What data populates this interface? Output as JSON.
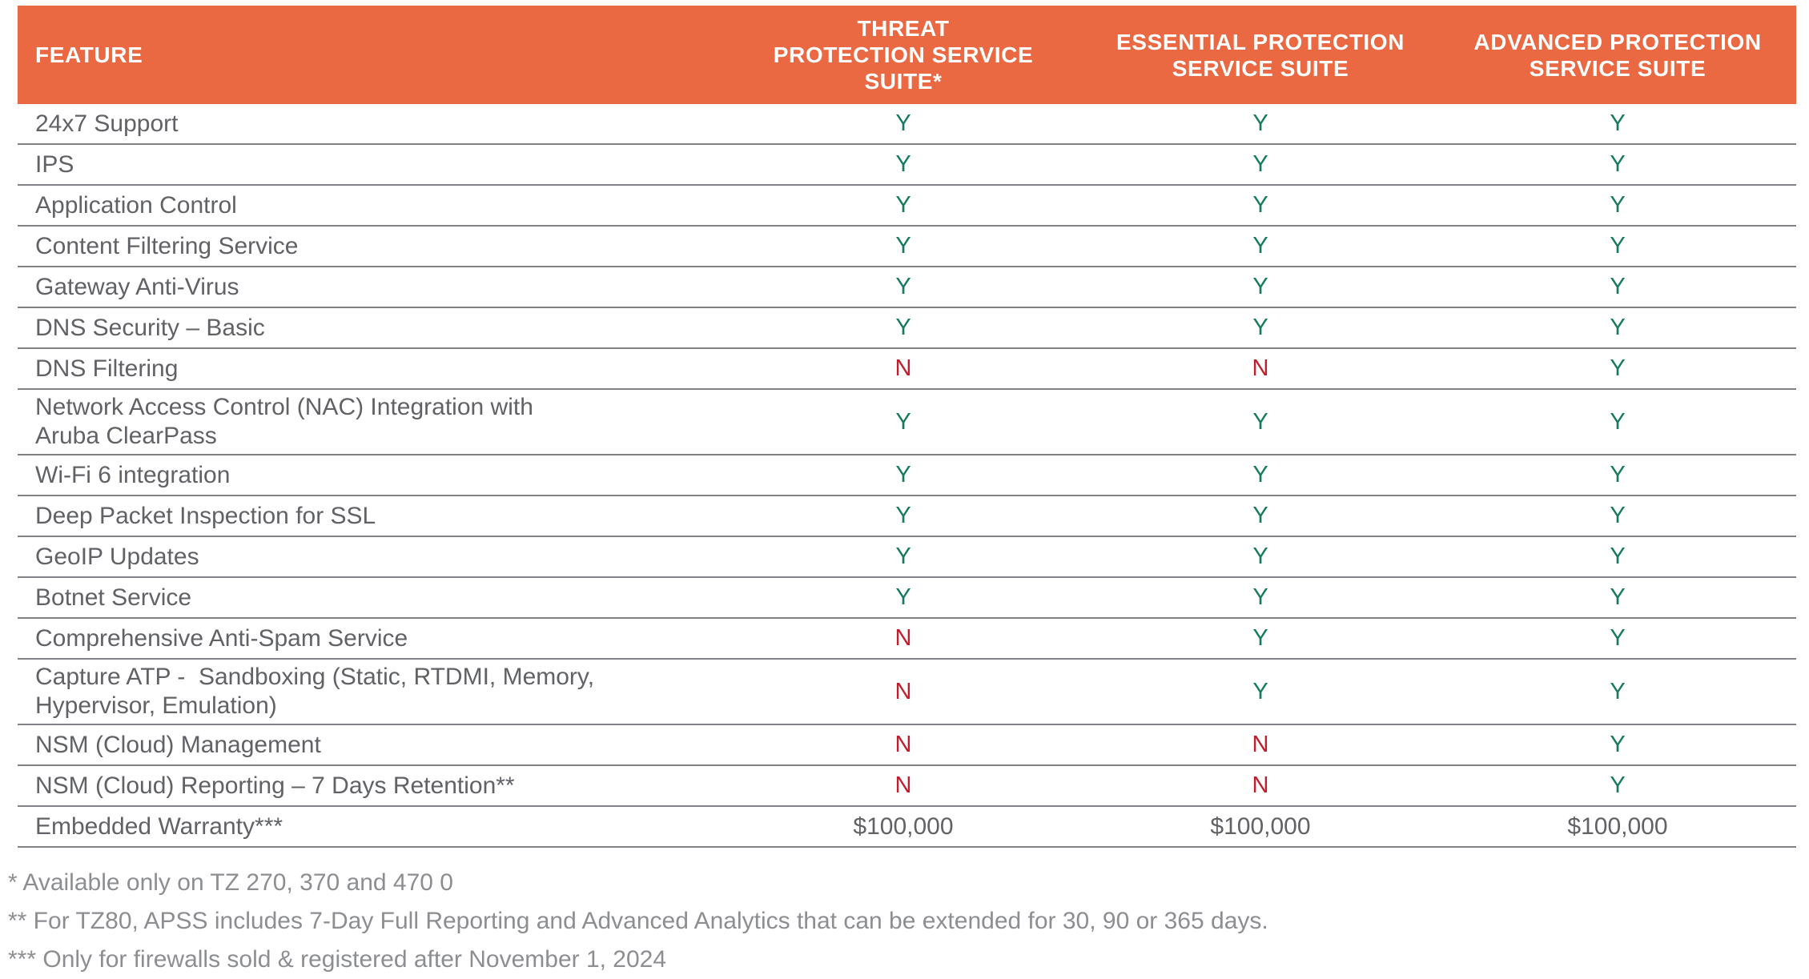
{
  "table": {
    "columns": [
      {
        "key": "feature",
        "label": "FEATURE"
      },
      {
        "key": "threat",
        "label": "THREAT\nPROTECTION SERVICE\nSUITE*"
      },
      {
        "key": "essential",
        "label": "ESSENTIAL PROTECTION\nSERVICE SUITE"
      },
      {
        "key": "advanced",
        "label": "ADVANCED PROTECTION\nSERVICE SUITE"
      }
    ],
    "rows": [
      {
        "feature": "24x7 Support",
        "threat": "Y",
        "essential": "Y",
        "advanced": "Y"
      },
      {
        "feature": "IPS",
        "threat": "Y",
        "essential": "Y",
        "advanced": "Y"
      },
      {
        "feature": "Application Control",
        "threat": "Y",
        "essential": "Y",
        "advanced": "Y"
      },
      {
        "feature": "Content Filtering Service",
        "threat": "Y",
        "essential": "Y",
        "advanced": "Y"
      },
      {
        "feature": "Gateway Anti-Virus",
        "threat": "Y",
        "essential": "Y",
        "advanced": "Y"
      },
      {
        "feature": "DNS Security – Basic",
        "threat": "Y",
        "essential": "Y",
        "advanced": "Y"
      },
      {
        "feature": "DNS Filtering",
        "threat": "N",
        "essential": "N",
        "advanced": "Y"
      },
      {
        "feature": "Network Access Control (NAC) Integration with\nAruba ClearPass",
        "threat": "Y",
        "essential": "Y",
        "advanced": "Y"
      },
      {
        "feature": "Wi-Fi 6 integration",
        "threat": "Y",
        "essential": "Y",
        "advanced": "Y"
      },
      {
        "feature": "Deep Packet Inspection for SSL",
        "threat": "Y",
        "essential": "Y",
        "advanced": "Y"
      },
      {
        "feature": "GeoIP Updates",
        "threat": "Y",
        "essential": "Y",
        "advanced": "Y"
      },
      {
        "feature": "Botnet Service",
        "threat": "Y",
        "essential": "Y",
        "advanced": "Y"
      },
      {
        "feature": "Comprehensive Anti-Spam Service",
        "threat": "N",
        "essential": "Y",
        "advanced": "Y"
      },
      {
        "feature": "Capture ATP -  Sandboxing (Static, RTDMI, Memory,\nHypervisor, Emulation)",
        "threat": "N",
        "essential": "Y",
        "advanced": "Y"
      },
      {
        "feature": "NSM (Cloud) Management",
        "threat": "N",
        "essential": "N",
        "advanced": "Y"
      },
      {
        "feature": "NSM (Cloud) Reporting – 7 Days Retention**",
        "threat": "N",
        "essential": "N",
        "advanced": "Y"
      },
      {
        "feature": "Embedded Warranty***",
        "threat": "$100,000",
        "essential": "$100,000",
        "advanced": "$100,000"
      }
    ]
  },
  "footnotes": [
    "* Available only on TZ 270, 370 and 470 0",
    "** For TZ80, APSS includes 7-Day Full Reporting and Advanced Analytics that can be extended for 30, 90 or 365 days.",
    "*** Only for firewalls sold & registered after November 1, 2024"
  ],
  "colors": {
    "header_bg": "#EA6942",
    "header_text": "#FFFFFF",
    "yes_green": "#147B5F",
    "no_red": "#C01E2D",
    "body_text": "#606266",
    "footnote_text": "#8C8E91",
    "divider": "#7F8184"
  }
}
